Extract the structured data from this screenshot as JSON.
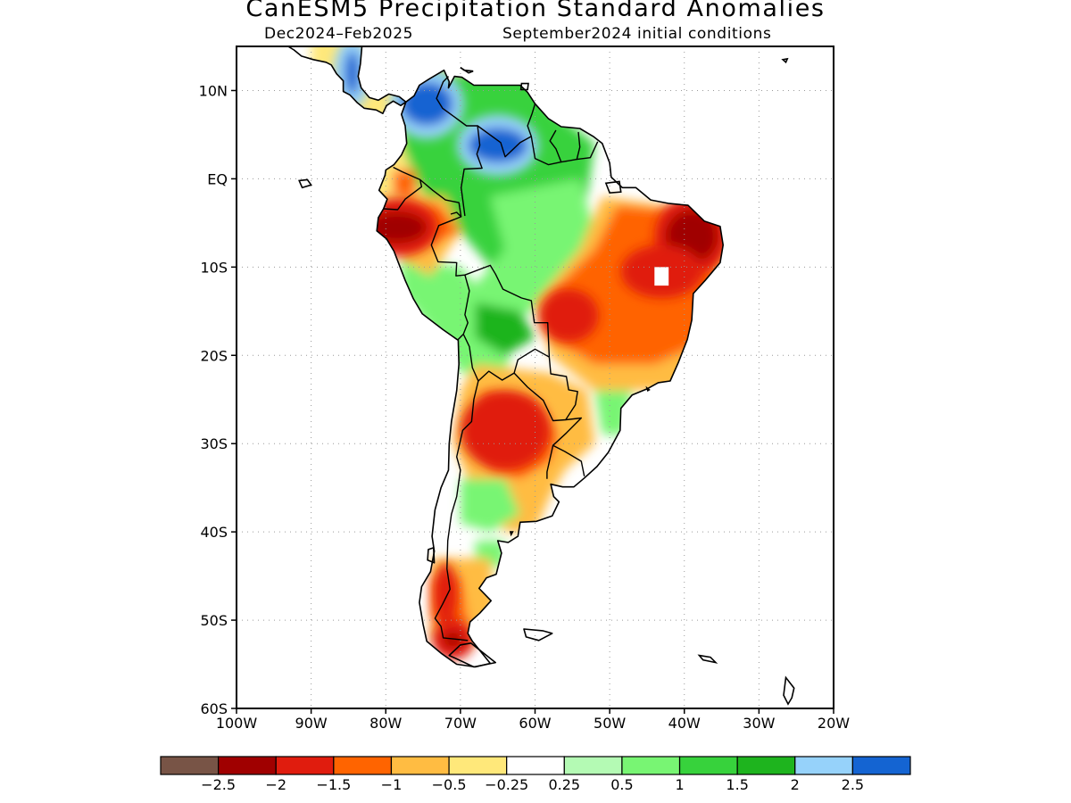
{
  "header": {
    "title": "CanESM5 Precipitation Standard Anomalies",
    "period": "Dec2024–Feb2025",
    "initial_conditions": "September2024 initial conditions"
  },
  "map": {
    "lon_range": [
      -100,
      -20
    ],
    "lat_range": [
      -60,
      15
    ],
    "x_ticks": [
      {
        "value": -100,
        "label": "100W"
      },
      {
        "value": -90,
        "label": "90W"
      },
      {
        "value": -80,
        "label": "80W"
      },
      {
        "value": -70,
        "label": "70W"
      },
      {
        "value": -60,
        "label": "60W"
      },
      {
        "value": -50,
        "label": "50W"
      },
      {
        "value": -40,
        "label": "40W"
      },
      {
        "value": -30,
        "label": "30W"
      },
      {
        "value": -20,
        "label": "20W"
      }
    ],
    "y_ticks": [
      {
        "value": 10,
        "label": "10N"
      },
      {
        "value": 0,
        "label": "EQ"
      },
      {
        "value": -10,
        "label": "10S"
      },
      {
        "value": -20,
        "label": "20S"
      },
      {
        "value": -30,
        "label": "30S"
      },
      {
        "value": -40,
        "label": "40S"
      },
      {
        "value": -50,
        "label": "50S"
      },
      {
        "value": -60,
        "label": "60S"
      }
    ],
    "grid": "dotted",
    "coastline": "South America and Central America outlines with country borders",
    "anomaly_regions": [
      {
        "level": 2.5,
        "lon": -74.5,
        "lat": 8.5,
        "rx": 3.5,
        "ry": 2.5
      },
      {
        "level": 2.5,
        "lon": -65,
        "lat": 3.8,
        "rx": 4,
        "ry": 2
      },
      {
        "level": 2.5,
        "lon": -84.5,
        "lat": 12,
        "rx": 1,
        "ry": 2.5
      },
      {
        "level": -2,
        "lon": -78.5,
        "lat": -5.5,
        "rx": 4,
        "ry": 1.8
      },
      {
        "level": -2,
        "lon": -39,
        "lat": -6.5,
        "rx": 3.5,
        "ry": 3
      },
      {
        "level": -2,
        "lon": -64.5,
        "lat": -29.5,
        "rx": 1,
        "ry": 1.5
      },
      {
        "level": -2,
        "lon": -71,
        "lat": -52.2,
        "rx": 1.3,
        "ry": 0.8
      },
      {
        "level": -1.5,
        "lon": -55.5,
        "lat": -15.5,
        "rx": 4,
        "ry": 3
      },
      {
        "level": -1.5,
        "lon": -43,
        "lat": -10.5,
        "rx": 5.5,
        "ry": 3
      },
      {
        "level": -1.5,
        "lon": -64,
        "lat": -28.5,
        "rx": 6,
        "ry": 4.5
      },
      {
        "level": -1.5,
        "lon": -72,
        "lat": -47,
        "rx": 1.5,
        "ry": 3.5
      }
    ]
  },
  "legend": {
    "colors": [
      "#785446",
      "#a00000",
      "#e01c0e",
      "#ff6400",
      "#ffbc42",
      "#ffe87a",
      "#ffffff",
      "#b4fab4",
      "#78f573",
      "#37d23c",
      "#1eb41e",
      "#96d2fa",
      "#1464d2"
    ],
    "labels": [
      "−2.5",
      "−2",
      "−1.5",
      "−1",
      "−0.5",
      "−0.25",
      "0.25",
      "0.5",
      "1",
      "1.5",
      "2",
      "2.5"
    ]
  }
}
